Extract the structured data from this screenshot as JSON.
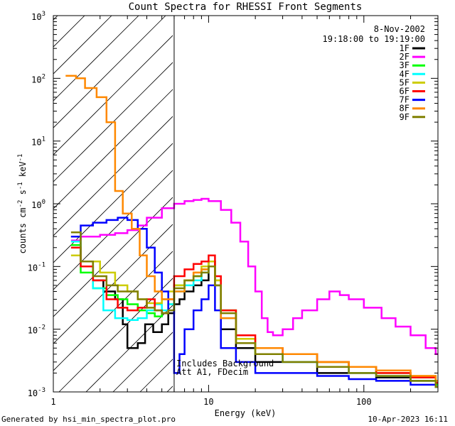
{
  "chart_data": {
    "type": "line",
    "title": "Count Spectra for RHESSI Front Segments",
    "xlabel": "Energy (keV)",
    "ylabel": "counts cm-2 s-1 keV-1",
    "ylabel_parts": [
      "counts cm",
      "-2",
      " s",
      "-1",
      " keV",
      "-1"
    ],
    "x_scale": "log",
    "y_scale": "log",
    "xlim": [
      1,
      300
    ],
    "ylim": [
      0.001,
      1000
    ],
    "x_ticks": [
      {
        "value": 1,
        "label": "1"
      },
      {
        "value": 10,
        "label": "10"
      },
      {
        "value": 100,
        "label": "100"
      }
    ],
    "y_ticks": [
      {
        "value": 0.001,
        "base": "10",
        "exp": "-3"
      },
      {
        "value": 0.01,
        "base": "10",
        "exp": "-2"
      },
      {
        "value": 0.1,
        "base": "10",
        "exp": "-1"
      },
      {
        "value": 1,
        "base": "10",
        "exp": "0"
      },
      {
        "value": 10,
        "base": "10",
        "exp": "1"
      },
      {
        "value": 100,
        "base": "10",
        "exp": "2"
      },
      {
        "value": 1000,
        "base": "10",
        "exp": "3"
      }
    ],
    "shaded_region_x": [
      1,
      6
    ],
    "vertical_line_x": 6,
    "annotations": [
      "8-Nov-2002",
      "19:18:00 to 19:19:00"
    ],
    "note_lines": [
      "Includes Background",
      "Att A1, FDecim"
    ],
    "legend_position": "top-right",
    "series": [
      {
        "name": "1F",
        "color": "#000000",
        "points": [
          [
            1.3,
            0.3
          ],
          [
            1.5,
            0.12
          ],
          [
            1.8,
            0.06
          ],
          [
            2.1,
            0.04
          ],
          [
            2.5,
            0.03
          ],
          [
            2.8,
            0.012
          ],
          [
            3.0,
            0.005
          ],
          [
            3.5,
            0.006
          ],
          [
            3.9,
            0.012
          ],
          [
            4.4,
            0.009
          ],
          [
            5.0,
            0.012
          ],
          [
            5.5,
            0.018
          ],
          [
            6.0,
            0.025
          ],
          [
            6.5,
            0.03
          ],
          [
            7,
            0.04
          ],
          [
            8,
            0.05
          ],
          [
            9,
            0.06
          ],
          [
            10,
            0.12
          ],
          [
            11,
            0.05
          ],
          [
            12,
            0.01
          ],
          [
            15,
            0.005
          ],
          [
            20,
            0.003
          ],
          [
            30,
            0.003
          ],
          [
            50,
            0.002
          ],
          [
            80,
            0.002
          ],
          [
            120,
            0.0017
          ],
          [
            200,
            0.0015
          ],
          [
            290,
            0.0013
          ]
        ]
      },
      {
        "name": "2F",
        "color": "#ff00ff",
        "points": [
          [
            1.3,
            0.26
          ],
          [
            1.5,
            0.3
          ],
          [
            2,
            0.32
          ],
          [
            2.5,
            0.34
          ],
          [
            3,
            0.38
          ],
          [
            3.5,
            0.45
          ],
          [
            4,
            0.6
          ],
          [
            5,
            0.85
          ],
          [
            6,
            1.0
          ],
          [
            7,
            1.1
          ],
          [
            8,
            1.15
          ],
          [
            9,
            1.2
          ],
          [
            10,
            1.1
          ],
          [
            12,
            0.8
          ],
          [
            14,
            0.5
          ],
          [
            16,
            0.25
          ],
          [
            18,
            0.1
          ],
          [
            20,
            0.04
          ],
          [
            22,
            0.015
          ],
          [
            24,
            0.009
          ],
          [
            26,
            0.008
          ],
          [
            30,
            0.01
          ],
          [
            35,
            0.015
          ],
          [
            40,
            0.02
          ],
          [
            50,
            0.03
          ],
          [
            60,
            0.04
          ],
          [
            70,
            0.035
          ],
          [
            80,
            0.03
          ],
          [
            100,
            0.022
          ],
          [
            130,
            0.015
          ],
          [
            160,
            0.011
          ],
          [
            200,
            0.008
          ],
          [
            250,
            0.005
          ],
          [
            290,
            0.004
          ]
        ]
      },
      {
        "name": "3F",
        "color": "#00ff00",
        "points": [
          [
            1.3,
            0.22
          ],
          [
            1.5,
            0.08
          ],
          [
            1.8,
            0.045
          ],
          [
            2.2,
            0.035
          ],
          [
            2.6,
            0.03
          ],
          [
            3.0,
            0.025
          ],
          [
            3.5,
            0.02
          ],
          [
            4,
            0.018
          ],
          [
            4.5,
            0.016
          ],
          [
            5,
            0.018
          ],
          [
            5.5,
            0.025
          ],
          [
            6,
            0.05
          ],
          [
            7,
            0.06
          ],
          [
            8,
            0.07
          ],
          [
            9,
            0.09
          ],
          [
            10,
            0.12
          ],
          [
            11,
            0.06
          ],
          [
            12,
            0.02
          ],
          [
            15,
            0.007
          ],
          [
            20,
            0.004
          ],
          [
            30,
            0.004
          ],
          [
            50,
            0.003
          ],
          [
            80,
            0.0025
          ],
          [
            120,
            0.002
          ],
          [
            200,
            0.0017
          ],
          [
            290,
            0.0013
          ]
        ]
      },
      {
        "name": "4F",
        "color": "#00ffff",
        "points": [
          [
            1.3,
            0.25
          ],
          [
            1.5,
            0.1
          ],
          [
            1.8,
            0.045
          ],
          [
            2.1,
            0.02
          ],
          [
            2.5,
            0.015
          ],
          [
            3.0,
            0.014
          ],
          [
            3.5,
            0.015
          ],
          [
            4,
            0.02
          ],
          [
            4.5,
            0.025
          ],
          [
            5,
            0.02
          ],
          [
            5.5,
            0.025
          ],
          [
            6,
            0.04
          ],
          [
            7,
            0.05
          ],
          [
            8,
            0.06
          ],
          [
            9,
            0.08
          ],
          [
            10,
            0.1
          ],
          [
            11,
            0.05
          ],
          [
            12,
            0.015
          ],
          [
            15,
            0.006
          ],
          [
            20,
            0.004
          ],
          [
            30,
            0.003
          ],
          [
            50,
            0.0025
          ],
          [
            80,
            0.002
          ],
          [
            120,
            0.0018
          ],
          [
            200,
            0.0015
          ],
          [
            290,
            0.0012
          ]
        ]
      },
      {
        "name": "5F",
        "color": "#cccc00",
        "points": [
          [
            1.3,
            0.15
          ],
          [
            1.5,
            0.12
          ],
          [
            2,
            0.08
          ],
          [
            2.5,
            0.05
          ],
          [
            3.0,
            0.04
          ],
          [
            3.5,
            0.03
          ],
          [
            4,
            0.026
          ],
          [
            4.5,
            0.026
          ],
          [
            5,
            0.03
          ],
          [
            5.5,
            0.04
          ],
          [
            6,
            0.05
          ],
          [
            7,
            0.06
          ],
          [
            8,
            0.08
          ],
          [
            9,
            0.1
          ],
          [
            10,
            0.12
          ],
          [
            11,
            0.06
          ],
          [
            12,
            0.02
          ],
          [
            15,
            0.007
          ],
          [
            20,
            0.004
          ],
          [
            30,
            0.004
          ],
          [
            50,
            0.003
          ],
          [
            80,
            0.0025
          ],
          [
            120,
            0.002
          ],
          [
            200,
            0.0018
          ],
          [
            290,
            0.0014
          ]
        ]
      },
      {
        "name": "6F",
        "color": "#ff0000",
        "points": [
          [
            1.3,
            0.2
          ],
          [
            1.5,
            0.1
          ],
          [
            1.8,
            0.06
          ],
          [
            2.2,
            0.03
          ],
          [
            2.6,
            0.022
          ],
          [
            3.0,
            0.02
          ],
          [
            3.5,
            0.022
          ],
          [
            4,
            0.03
          ],
          [
            4.5,
            0.02
          ],
          [
            5,
            0.018
          ],
          [
            5.5,
            0.03
          ],
          [
            6,
            0.07
          ],
          [
            7,
            0.09
          ],
          [
            8,
            0.11
          ],
          [
            9,
            0.12
          ],
          [
            10,
            0.15
          ],
          [
            11,
            0.07
          ],
          [
            12,
            0.02
          ],
          [
            15,
            0.008
          ],
          [
            20,
            0.005
          ],
          [
            30,
            0.004
          ],
          [
            50,
            0.003
          ],
          [
            80,
            0.0025
          ],
          [
            120,
            0.002
          ],
          [
            200,
            0.0017
          ],
          [
            290,
            0.0014
          ]
        ]
      },
      {
        "name": "7F",
        "color": "#0000ff",
        "points": [
          [
            1.3,
            0.3
          ],
          [
            1.5,
            0.45
          ],
          [
            1.8,
            0.5
          ],
          [
            2.2,
            0.55
          ],
          [
            2.6,
            0.6
          ],
          [
            3.0,
            0.55
          ],
          [
            3.5,
            0.4
          ],
          [
            4,
            0.2
          ],
          [
            4.5,
            0.08
          ],
          [
            5,
            0.04
          ],
          [
            5.5,
            0.02
          ],
          [
            6,
            0.002
          ],
          [
            6.5,
            0.004
          ],
          [
            7,
            0.01
          ],
          [
            8,
            0.02
          ],
          [
            9,
            0.03
          ],
          [
            10,
            0.05
          ],
          [
            11,
            0.02
          ],
          [
            12,
            0.005
          ],
          [
            15,
            0.003
          ],
          [
            20,
            0.002
          ],
          [
            30,
            0.002
          ],
          [
            50,
            0.0018
          ],
          [
            80,
            0.0016
          ],
          [
            120,
            0.0015
          ],
          [
            200,
            0.0013
          ],
          [
            290,
            0.0012
          ]
        ]
      },
      {
        "name": "8F",
        "color": "#ff8800",
        "points": [
          [
            1.2,
            110
          ],
          [
            1.4,
            100
          ],
          [
            1.6,
            70
          ],
          [
            1.9,
            50
          ],
          [
            2.2,
            20
          ],
          [
            2.5,
            1.6
          ],
          [
            2.8,
            0.7
          ],
          [
            3.2,
            0.4
          ],
          [
            3.6,
            0.15
          ],
          [
            4,
            0.07
          ],
          [
            4.5,
            0.04
          ],
          [
            5,
            0.03
          ],
          [
            5.5,
            0.03
          ],
          [
            6,
            0.04
          ],
          [
            7,
            0.06
          ],
          [
            8,
            0.08
          ],
          [
            9,
            0.09
          ],
          [
            10,
            0.1
          ],
          [
            11,
            0.05
          ],
          [
            12,
            0.015
          ],
          [
            15,
            0.006
          ],
          [
            20,
            0.005
          ],
          [
            30,
            0.004
          ],
          [
            50,
            0.003
          ],
          [
            80,
            0.0025
          ],
          [
            120,
            0.0022
          ],
          [
            200,
            0.0018
          ],
          [
            290,
            0.0015
          ]
        ]
      },
      {
        "name": "9F",
        "color": "#808000",
        "points": [
          [
            1.3,
            0.35
          ],
          [
            1.5,
            0.12
          ],
          [
            1.8,
            0.07
          ],
          [
            2.2,
            0.05
          ],
          [
            2.6,
            0.04
          ],
          [
            3.0,
            0.04
          ],
          [
            3.5,
            0.03
          ],
          [
            4,
            0.022
          ],
          [
            4.5,
            0.02
          ],
          [
            5,
            0.018
          ],
          [
            5.5,
            0.02
          ],
          [
            6,
            0.045
          ],
          [
            7,
            0.06
          ],
          [
            8,
            0.07
          ],
          [
            9,
            0.08
          ],
          [
            10,
            0.1
          ],
          [
            11,
            0.05
          ],
          [
            12,
            0.018
          ],
          [
            15,
            0.006
          ],
          [
            20,
            0.004
          ],
          [
            30,
            0.003
          ],
          [
            50,
            0.0025
          ],
          [
            80,
            0.002
          ],
          [
            120,
            0.0018
          ],
          [
            200,
            0.0015
          ],
          [
            290,
            0.0012
          ]
        ]
      }
    ]
  },
  "footer": {
    "left": "Generated by hsi_min_spectra_plot.pro",
    "right": "10-Apr-2023 16:11"
  }
}
